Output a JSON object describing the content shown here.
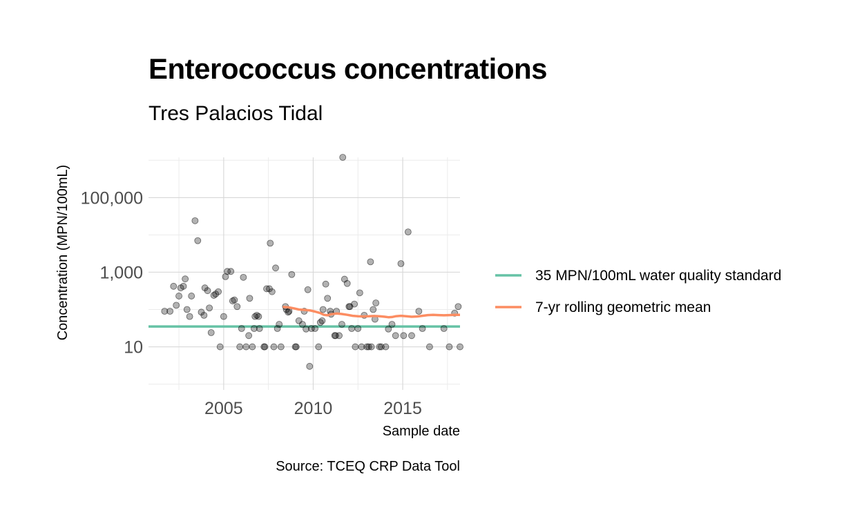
{
  "chart_data": {
    "type": "scatter",
    "title": "Enterococcus concentrations",
    "subtitle": "Tres Palacios Tidal",
    "xlabel": "Sample date",
    "ylabel": "Concentration (MPN/100mL)",
    "caption": "Source: TCEQ CRP Data Tool",
    "x_scale": "date",
    "y_scale": "log10",
    "xlim": [
      2000.8,
      2018.2
    ],
    "ylim": [
      0.7,
      1200000
    ],
    "x_ticks": [
      {
        "value": 2005,
        "label": "2005"
      },
      {
        "value": 2010,
        "label": "2010"
      },
      {
        "value": 2015,
        "label": "2015"
      }
    ],
    "y_ticks": [
      {
        "value": 10,
        "label": "10"
      },
      {
        "value": 1000,
        "label": "1,000"
      },
      {
        "value": 100000,
        "label": "100,000"
      }
    ],
    "y_minor": [
      1,
      100,
      10000,
      1000000
    ],
    "x_minor": [
      2002.5,
      2007.5,
      2012.5,
      2017.5
    ],
    "grid": true,
    "legend_position": "right",
    "colors": {
      "standard": "#66c2a5",
      "geomean": "#fc8d62",
      "points": "#000000"
    },
    "standard": {
      "name": "35 MPN/100mL water quality standard",
      "value": 35
    },
    "series": [
      {
        "name": "Samples",
        "kind": "points",
        "points": [
          [
            2001.7,
            90
          ],
          [
            2002.0,
            90
          ],
          [
            2002.2,
            420
          ],
          [
            2002.35,
            130
          ],
          [
            2002.5,
            230
          ],
          [
            2002.6,
            380
          ],
          [
            2002.75,
            420
          ],
          [
            2002.85,
            660
          ],
          [
            2002.95,
            100
          ],
          [
            2003.1,
            65
          ],
          [
            2003.2,
            230
          ],
          [
            2003.4,
            24000
          ],
          [
            2003.55,
            7000
          ],
          [
            2003.75,
            85
          ],
          [
            2003.9,
            70
          ],
          [
            2003.95,
            380
          ],
          [
            2004.1,
            320
          ],
          [
            2004.2,
            110
          ],
          [
            2004.3,
            24
          ],
          [
            2004.45,
            240
          ],
          [
            2004.55,
            260
          ],
          [
            2004.7,
            300
          ],
          [
            2004.8,
            10
          ],
          [
            2005.0,
            65
          ],
          [
            2005.1,
            760
          ],
          [
            2005.2,
            1050
          ],
          [
            2005.4,
            1050
          ],
          [
            2005.5,
            170
          ],
          [
            2005.6,
            180
          ],
          [
            2005.75,
            120
          ],
          [
            2005.9,
            10
          ],
          [
            2006.0,
            31
          ],
          [
            2006.1,
            730
          ],
          [
            2006.25,
            10
          ],
          [
            2006.4,
            20
          ],
          [
            2006.45,
            200
          ],
          [
            2006.6,
            10
          ],
          [
            2006.7,
            31
          ],
          [
            2006.75,
            65
          ],
          [
            2006.85,
            70
          ],
          [
            2006.95,
            65
          ],
          [
            2007.0,
            31
          ],
          [
            2007.25,
            10
          ],
          [
            2007.3,
            10
          ],
          [
            2007.4,
            360
          ],
          [
            2007.55,
            360
          ],
          [
            2007.6,
            6000
          ],
          [
            2007.7,
            300
          ],
          [
            2007.8,
            10
          ],
          [
            2007.9,
            1300
          ],
          [
            2008.0,
            31
          ],
          [
            2008.1,
            40
          ],
          [
            2008.2,
            10
          ],
          [
            2008.45,
            120
          ],
          [
            2008.5,
            100
          ],
          [
            2008.6,
            85
          ],
          [
            2008.65,
            90
          ],
          [
            2008.8,
            870
          ],
          [
            2009.0,
            10
          ],
          [
            2009.05,
            10
          ],
          [
            2009.2,
            50
          ],
          [
            2009.4,
            40
          ],
          [
            2009.5,
            90
          ],
          [
            2009.6,
            30
          ],
          [
            2009.7,
            340
          ],
          [
            2009.8,
            3
          ],
          [
            2009.9,
            31
          ],
          [
            2010.1,
            31
          ],
          [
            2010.3,
            10
          ],
          [
            2010.4,
            45
          ],
          [
            2010.5,
            50
          ],
          [
            2010.55,
            100
          ],
          [
            2010.7,
            480
          ],
          [
            2010.8,
            200
          ],
          [
            2010.95,
            90
          ],
          [
            2011.0,
            75
          ],
          [
            2011.2,
            20
          ],
          [
            2011.25,
            20
          ],
          [
            2011.3,
            90
          ],
          [
            2011.45,
            20
          ],
          [
            2011.6,
            40
          ],
          [
            2011.65,
            1200000
          ],
          [
            2011.75,
            650
          ],
          [
            2011.9,
            500
          ],
          [
            2012.0,
            120
          ],
          [
            2012.05,
            120
          ],
          [
            2012.15,
            31
          ],
          [
            2012.3,
            140
          ],
          [
            2012.35,
            10
          ],
          [
            2012.5,
            31
          ],
          [
            2012.6,
            280
          ],
          [
            2012.7,
            10
          ],
          [
            2012.85,
            70
          ],
          [
            2013.0,
            10
          ],
          [
            2013.1,
            10
          ],
          [
            2013.2,
            1900
          ],
          [
            2013.25,
            10
          ],
          [
            2013.35,
            100
          ],
          [
            2013.45,
            55
          ],
          [
            2013.5,
            150
          ],
          [
            2013.7,
            10
          ],
          [
            2013.8,
            10
          ],
          [
            2014.05,
            10
          ],
          [
            2014.2,
            30
          ],
          [
            2014.4,
            40
          ],
          [
            2014.6,
            20
          ],
          [
            2014.9,
            1700
          ],
          [
            2015.05,
            20
          ],
          [
            2015.3,
            12000
          ],
          [
            2015.5,
            20
          ],
          [
            2015.9,
            90
          ],
          [
            2016.1,
            31
          ],
          [
            2016.5,
            10
          ],
          [
            2017.3,
            31
          ],
          [
            2017.6,
            10
          ],
          [
            2017.9,
            80
          ],
          [
            2018.1,
            120
          ],
          [
            2018.2,
            10
          ],
          [
            2018.6,
            10
          ],
          [
            2019.1,
            31
          ]
        ]
      },
      {
        "name": "7-yr rolling geometric mean",
        "kind": "line",
        "points": [
          [
            2008.3,
            117
          ],
          [
            2008.6,
            115
          ],
          [
            2008.9,
            108
          ],
          [
            2009.2,
            100
          ],
          [
            2009.5,
            98
          ],
          [
            2009.8,
            95
          ],
          [
            2010.1,
            88
          ],
          [
            2010.4,
            80
          ],
          [
            2010.6,
            72
          ],
          [
            2010.8,
            70
          ],
          [
            2011.0,
            75
          ],
          [
            2011.3,
            78
          ],
          [
            2011.6,
            76
          ],
          [
            2011.9,
            72
          ],
          [
            2012.2,
            68
          ],
          [
            2012.5,
            66
          ],
          [
            2012.8,
            65
          ],
          [
            2013.1,
            66
          ],
          [
            2013.4,
            67
          ],
          [
            2013.7,
            66
          ],
          [
            2014.0,
            64
          ],
          [
            2014.2,
            62
          ],
          [
            2014.4,
            63
          ],
          [
            2014.6,
            66
          ],
          [
            2014.9,
            68
          ],
          [
            2015.2,
            66
          ],
          [
            2015.5,
            64
          ],
          [
            2015.8,
            65
          ],
          [
            2016.1,
            68
          ],
          [
            2016.4,
            71
          ],
          [
            2016.7,
            72
          ],
          [
            2017.0,
            71
          ],
          [
            2017.3,
            70
          ],
          [
            2017.6,
            71
          ],
          [
            2017.9,
            72
          ],
          [
            2018.2,
            72
          ],
          [
            2018.4,
            71
          ],
          [
            2018.6,
            70
          ],
          [
            2018.9,
            70
          ],
          [
            2019.1,
            70
          ]
        ]
      }
    ]
  }
}
